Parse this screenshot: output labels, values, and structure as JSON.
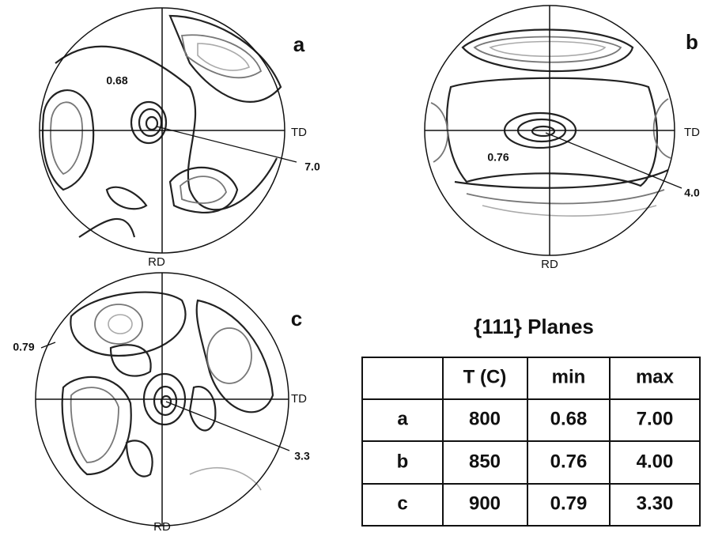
{
  "figures": [
    {
      "label": "a",
      "axis_x": "TD",
      "axis_y": "RD",
      "min_label": "0.68",
      "max_label": "7.0"
    },
    {
      "label": "b",
      "axis_x": "TD",
      "axis_y": "RD",
      "min_label": "0.76",
      "max_label": "4.0"
    },
    {
      "label": "c",
      "axis_x": "TD",
      "axis_y": "RD",
      "min_label": "0.79",
      "max_label": "3.3"
    }
  ],
  "table": {
    "title": "{111} Planes",
    "header": [
      "T (C)",
      "min",
      "max"
    ],
    "rows": [
      [
        "a",
        "800",
        "0.68",
        "7.00"
      ],
      [
        "b",
        "850",
        "0.76",
        "4.00"
      ],
      [
        "c",
        "900",
        "0.79",
        "3.30"
      ]
    ]
  }
}
